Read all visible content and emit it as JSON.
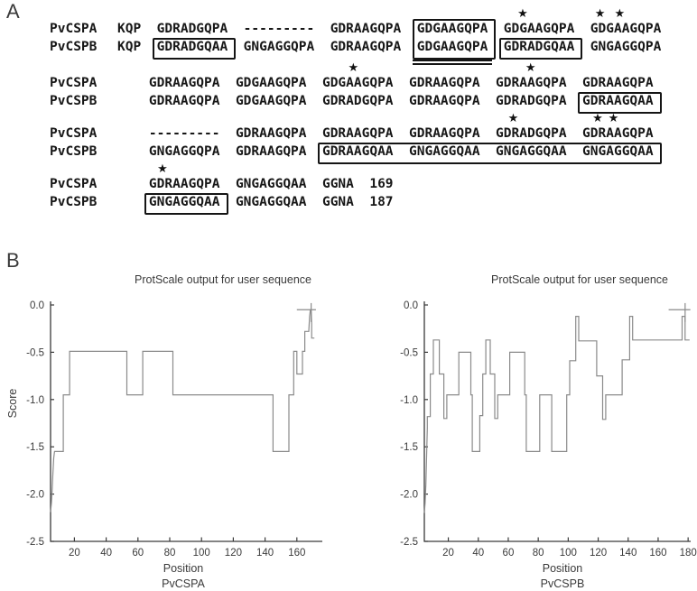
{
  "panel_a": {
    "label": "A",
    "blocks": [
      {
        "rows": [
          {
            "label": "PvCSPA",
            "seq": "KQP  GDRADGQPA  ---------  GDRAAGQPA  GDGAAGQPA  GDGAAGQPA  GDGAAGQPA"
          },
          {
            "label": "PvCSPB",
            "seq": "KQP  GDRADGQAA  GNGAGGQPA  GDRAAGQPA  GDGAAGQPA  GDRADGQAA  GNGAGGQPA"
          }
        ],
        "stars": [
          51,
          60.8,
          63.3
        ],
        "boxes": [
          {
            "start": 5,
            "end": 13,
            "span": "b"
          },
          {
            "start": 38,
            "end": 46,
            "span": "both"
          },
          {
            "start": 49,
            "end": 57,
            "span": "b"
          }
        ],
        "double_underline": {
          "start": 38,
          "end": 46
        }
      },
      {
        "rows": [
          {
            "label": "PvCSPA",
            "seq": "    GDRAAGQPA  GDGAAGQPA  GDGAAGQPA  GDRAAGQPA  GDRAAGQPA  GDRAAGQPA"
          },
          {
            "label": "PvCSPB",
            "seq": "    GDRAAGQPA  GDGAAGQPA  GDRADGQPA  GDRAAGQPA  GDRADGQPA  GDRAAGQAA"
          }
        ],
        "stars": [
          29.5,
          52
        ],
        "boxes": [
          {
            "start": 59,
            "end": 67,
            "span": "b"
          }
        ],
        "double_underline": null
      },
      {
        "rows": [
          {
            "label": "PvCSPA",
            "seq": "    ---------  GDRAAGQPA  GDRAAGQPA  GDRAAGQPA  GDRADGQPA  GDRAAGQPA"
          },
          {
            "label": "PvCSPB",
            "seq": "    GNGAGGQPA  GDRAAGQPA  GDRAAGQAA  GNGAGGQAA  GNGAGGQAA  GNGAGGQAA"
          }
        ],
        "stars": [
          49.8,
          60.5,
          62.5
        ],
        "boxes": [
          {
            "start": 26,
            "end": 67,
            "span": "b"
          }
        ],
        "double_underline": null
      },
      {
        "rows": [
          {
            "label": "PvCSPA",
            "seq": "    GDRAAGQPA  GNGAGGQAA  GGNA  169"
          },
          {
            "label": "PvCSPB",
            "seq": "    GNGAGGQAA  GNGAGGQAA  GGNA  187"
          }
        ],
        "stars": [
          5.3
        ],
        "boxes": [
          {
            "start": 4,
            "end": 12,
            "span": "b"
          }
        ],
        "double_underline": null
      }
    ],
    "sequence_end_numbers": {
      "PvCSPA": 169,
      "PvCSPB": 187
    }
  },
  "panel_b": {
    "label": "B"
  },
  "chart_data": [
    {
      "type": "line",
      "title": "ProtScale output for user sequence",
      "ylabel": "Score",
      "xlabel": "Position",
      "sublabel": "PvCSPA",
      "x_ticks": [
        20,
        40,
        60,
        80,
        100,
        120,
        140,
        160
      ],
      "y_ticks": [
        0,
        -0.5,
        -1,
        -1.5,
        -2,
        -2.5
      ],
      "xlim": [
        1,
        176
      ],
      "ylim": [
        -2.5,
        0
      ],
      "grid": false,
      "line_color": "#8a8a8a",
      "series": [
        [
          5,
          -2.19
        ],
        [
          5.5,
          -2.1
        ],
        [
          6,
          -1.95
        ],
        [
          6.5,
          -1.78
        ],
        [
          7,
          -1.62
        ],
        [
          7.5,
          -1.55
        ],
        [
          13,
          -1.55
        ],
        [
          13,
          -0.95
        ],
        [
          17,
          -0.95
        ],
        [
          17,
          -0.49
        ],
        [
          53,
          -0.49
        ],
        [
          53,
          -0.95
        ],
        [
          63,
          -0.95
        ],
        [
          63,
          -0.49
        ],
        [
          82,
          -0.49
        ],
        [
          82,
          -0.95
        ],
        [
          145,
          -0.95
        ],
        [
          145,
          -1.55
        ],
        [
          155,
          -1.55
        ],
        [
          155,
          -0.95
        ],
        [
          158,
          -0.95
        ],
        [
          158,
          -0.49
        ],
        [
          160,
          -0.49
        ],
        [
          160,
          -0.73
        ],
        [
          163.5,
          -0.73
        ],
        [
          163.5,
          -0.49
        ],
        [
          165,
          -0.49
        ],
        [
          165,
          -0.28
        ],
        [
          167.5,
          -0.28
        ],
        [
          168,
          -0.12
        ],
        [
          168.5,
          -0.05
        ],
        [
          169,
          -0.05
        ],
        [
          169.3,
          -0.2
        ],
        [
          169.3,
          -0.35
        ],
        [
          171,
          -0.35
        ]
      ],
      "marker": {
        "hline": {
          "y": -0.05,
          "x1": 160,
          "x2": 172
        },
        "vline": {
          "x": 169,
          "y1": -0.18,
          "y2": 0.02
        }
      }
    },
    {
      "type": "line",
      "title": "ProtScale output for user sequence",
      "ylabel": "",
      "xlabel": "Position",
      "sublabel": "PvCSPB",
      "x_ticks": [
        20,
        40,
        60,
        80,
        100,
        120,
        140,
        160,
        180
      ],
      "y_ticks": [
        0,
        -0.5,
        -1,
        -1.5,
        -2,
        -2.5
      ],
      "xlim": [
        1,
        187
      ],
      "ylim": [
        -2.5,
        0
      ],
      "grid": false,
      "line_color": "#8a8a8a",
      "series": [
        [
          4,
          -2.2
        ],
        [
          4.5,
          -2.1
        ],
        [
          5,
          -1.9
        ],
        [
          5.5,
          -1.6
        ],
        [
          6,
          -1.3
        ],
        [
          6,
          -1.18
        ],
        [
          8,
          -1.18
        ],
        [
          8,
          -0.73
        ],
        [
          10,
          -0.73
        ],
        [
          10,
          -0.37
        ],
        [
          14,
          -0.37
        ],
        [
          14,
          -0.73
        ],
        [
          17,
          -0.73
        ],
        [
          17,
          -1.2
        ],
        [
          19,
          -1.2
        ],
        [
          19,
          -0.95
        ],
        [
          27,
          -0.95
        ],
        [
          27,
          -0.5
        ],
        [
          35,
          -0.5
        ],
        [
          35,
          -0.95
        ],
        [
          36,
          -0.95
        ],
        [
          36,
          -1.55
        ],
        [
          41,
          -1.55
        ],
        [
          41,
          -1.17
        ],
        [
          43,
          -1.17
        ],
        [
          43,
          -0.73
        ],
        [
          45,
          -0.73
        ],
        [
          45,
          -0.37
        ],
        [
          48,
          -0.37
        ],
        [
          48,
          -0.73
        ],
        [
          51,
          -0.73
        ],
        [
          51,
          -1.2
        ],
        [
          53,
          -1.2
        ],
        [
          53,
          -0.95
        ],
        [
          61,
          -0.95
        ],
        [
          61,
          -0.5
        ],
        [
          71,
          -0.5
        ],
        [
          71,
          -0.95
        ],
        [
          72,
          -0.95
        ],
        [
          72,
          -1.55
        ],
        [
          81,
          -1.55
        ],
        [
          81,
          -0.95
        ],
        [
          89,
          -0.95
        ],
        [
          89,
          -1.55
        ],
        [
          99,
          -1.55
        ],
        [
          99,
          -0.95
        ],
        [
          101,
          -0.95
        ],
        [
          101,
          -0.59
        ],
        [
          105,
          -0.59
        ],
        [
          105,
          -0.12
        ],
        [
          107,
          -0.12
        ],
        [
          107,
          -0.38
        ],
        [
          119,
          -0.38
        ],
        [
          119,
          -0.75
        ],
        [
          123,
          -0.75
        ],
        [
          123,
          -1.21
        ],
        [
          125,
          -1.21
        ],
        [
          125,
          -0.95
        ],
        [
          136,
          -0.95
        ],
        [
          136,
          -0.58
        ],
        [
          141,
          -0.58
        ],
        [
          141,
          -0.12
        ],
        [
          143,
          -0.12
        ],
        [
          143,
          -0.37
        ],
        [
          176,
          -0.37
        ],
        [
          176,
          -0.12
        ],
        [
          178,
          -0.12
        ],
        [
          178,
          -0.37
        ],
        [
          181,
          -0.37
        ]
      ],
      "marker": {
        "hline": {
          "y": -0.05,
          "x1": 167,
          "x2": 181.5
        },
        "vline": {
          "x": 178,
          "y1": -0.18,
          "y2": 0.02
        }
      }
    }
  ]
}
